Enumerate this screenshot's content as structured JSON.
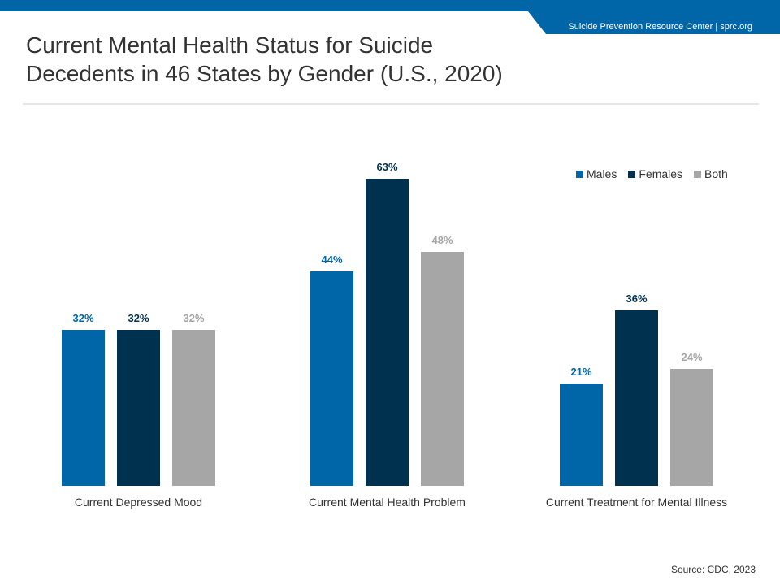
{
  "header": {
    "org": "Suicide Prevention Resource Center  |  sprc.org"
  },
  "title_lines": [
    "Current Mental Health Status for Suicide",
    "Decedents in 46 States by Gender (U.S., 2020)"
  ],
  "source": "Source: CDC, 2023",
  "colors": {
    "males": "#0066a8",
    "females": "#00324f",
    "both": "#a6a6a6",
    "brand": "#0066a8"
  },
  "legend": [
    {
      "label": "Males",
      "color": "#0066a8"
    },
    {
      "label": "Females",
      "color": "#00324f"
    },
    {
      "label": "Both",
      "color": "#a6a6a6"
    }
  ],
  "chart_data": {
    "type": "bar",
    "title": "Current Mental Health Status for Suicide Decedents in 46 States by Gender (U.S., 2020)",
    "categories": [
      "Current Depressed Mood",
      "Current Mental Health Problem",
      "Current Treatment for Mental Illness"
    ],
    "series": [
      {
        "name": "Males",
        "values": [
          32,
          44,
          21
        ],
        "labels": [
          "32%",
          "44%",
          "21%"
        ]
      },
      {
        "name": "Females",
        "values": [
          32,
          63,
          36
        ],
        "labels": [
          "32%",
          "63%",
          "36%"
        ]
      },
      {
        "name": "Both",
        "values": [
          32,
          48,
          24
        ],
        "labels": [
          "32%",
          "48%",
          "24%"
        ]
      }
    ],
    "unit": "%",
    "ylim": [
      0,
      63
    ],
    "grid": false,
    "legend_position": "top-right"
  }
}
